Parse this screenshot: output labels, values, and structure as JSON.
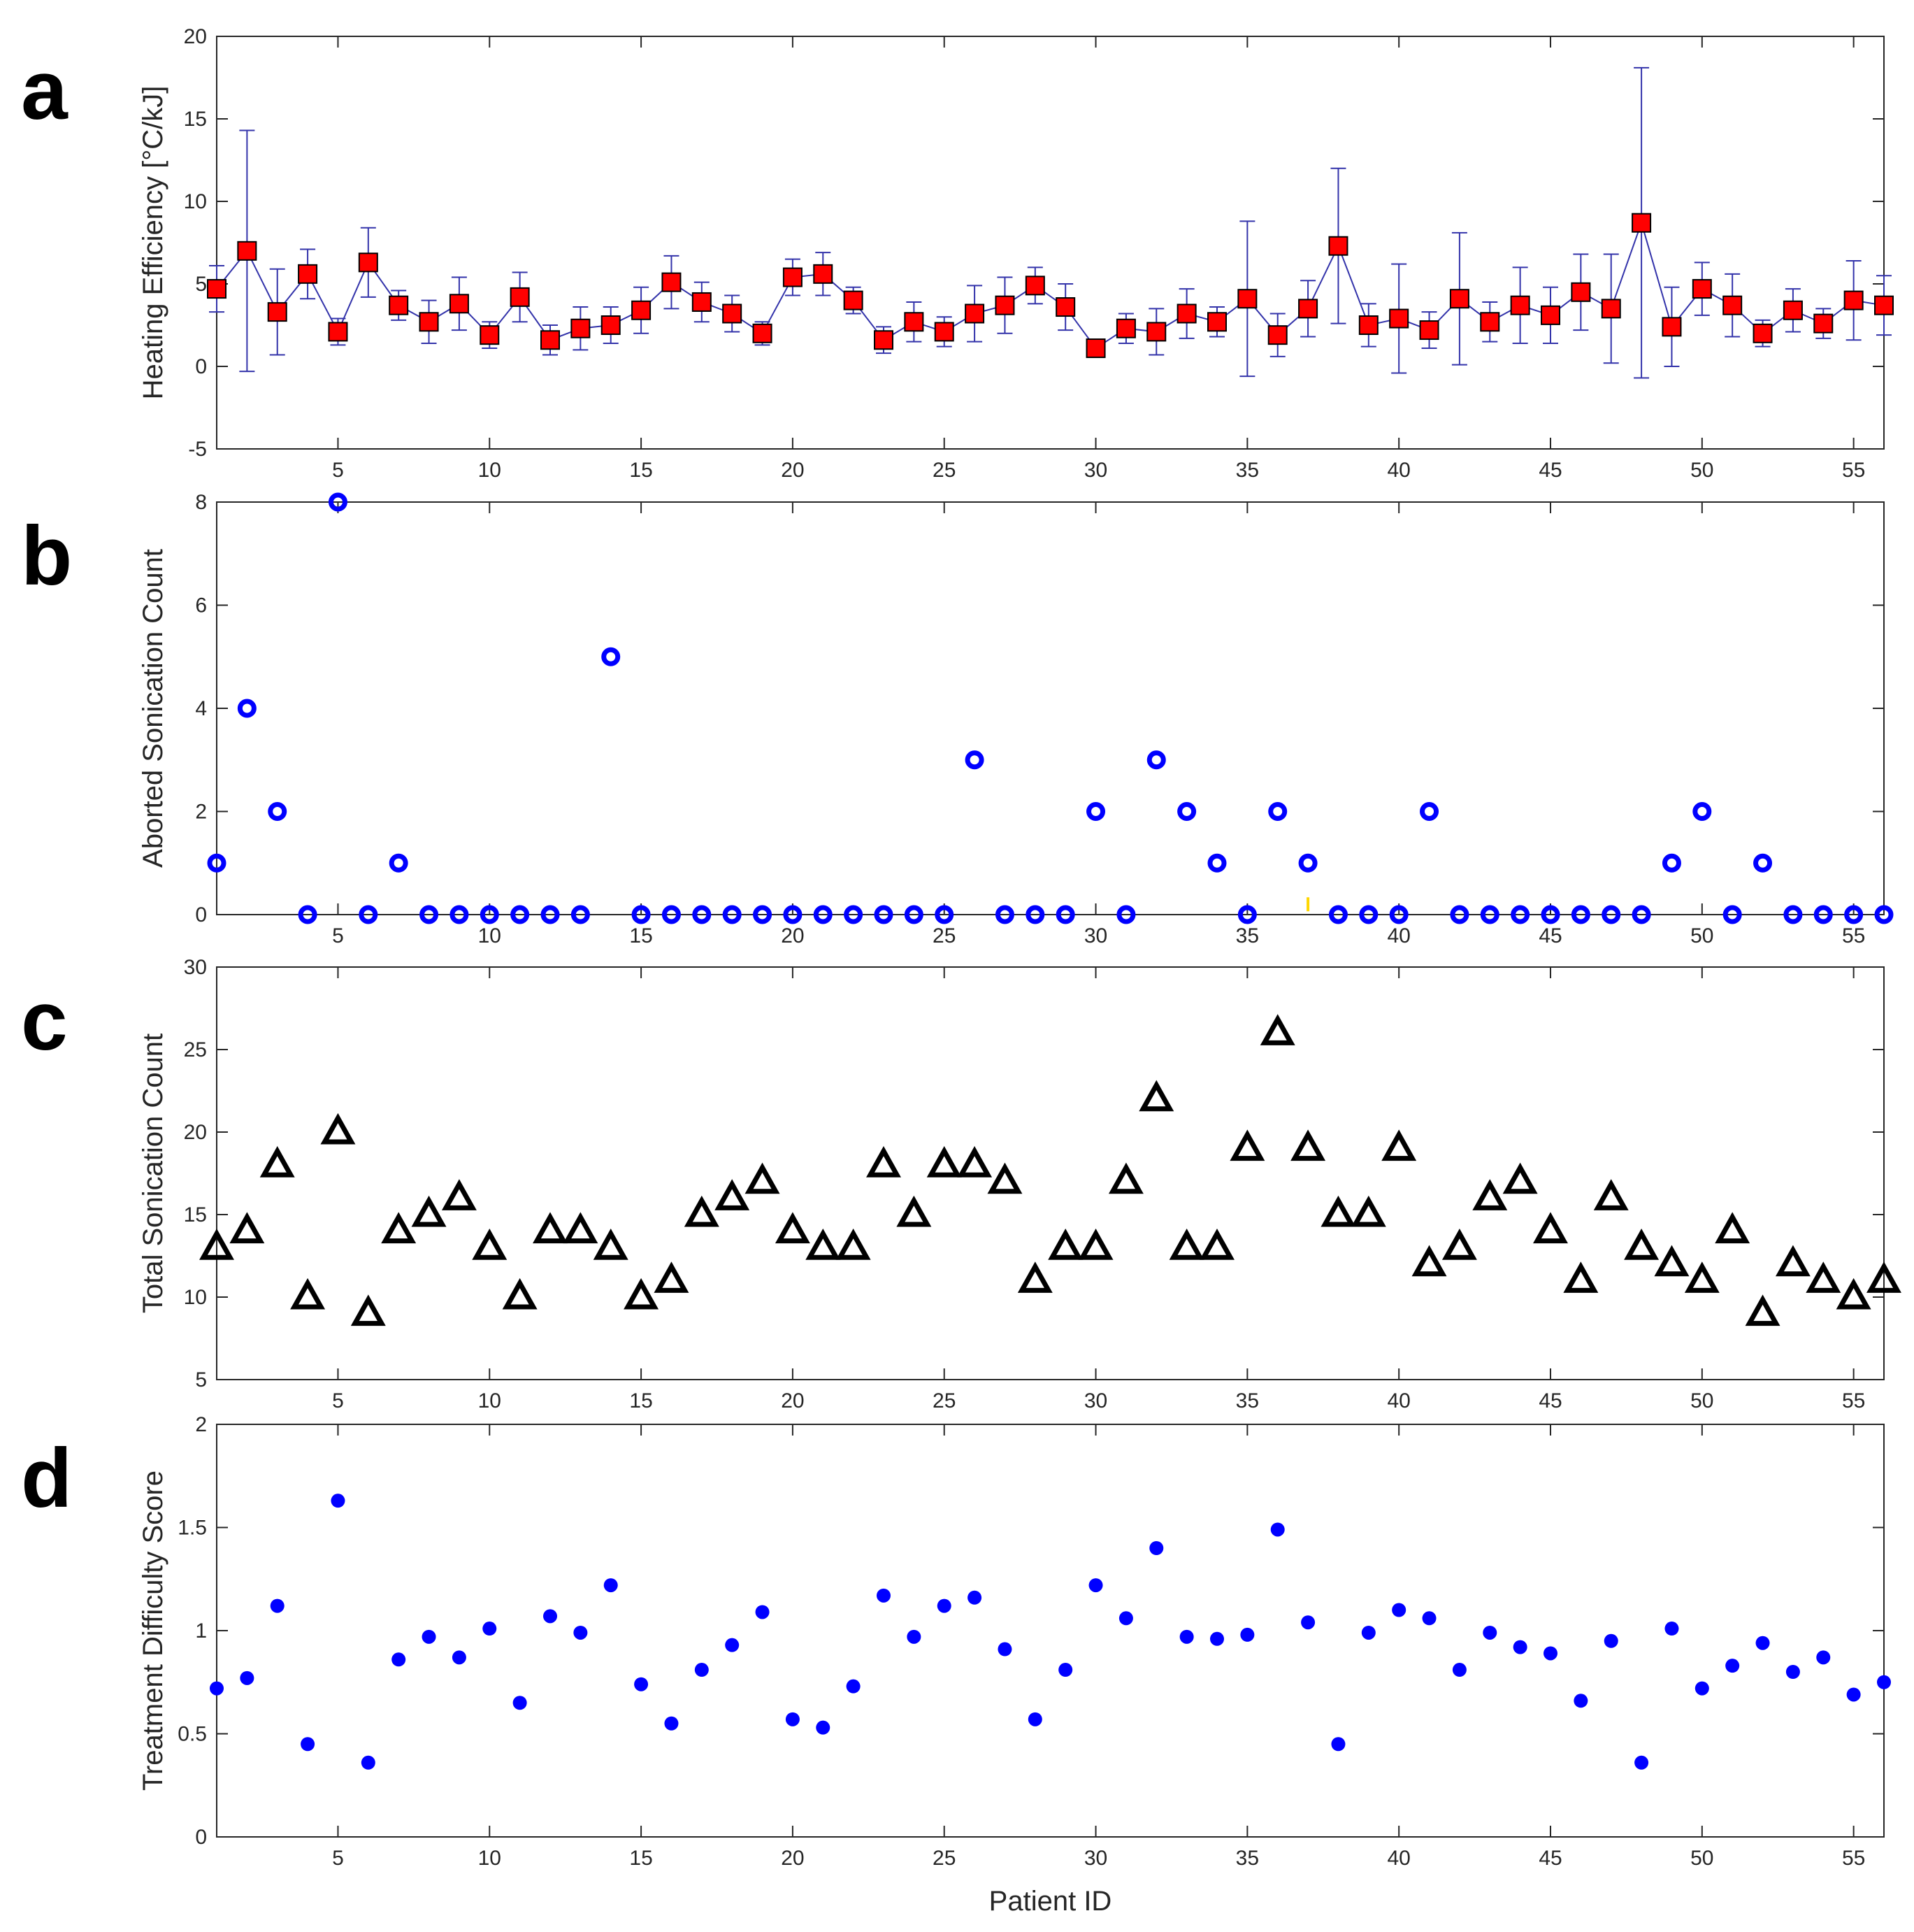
{
  "figure": {
    "xlabel": "Patient ID"
  },
  "colors": {
    "axis": "#262626",
    "marker_red": "#ff0000",
    "errorbar": "#3333aa",
    "blue": "#0000ff",
    "black": "#000000",
    "annotation": "#ffd700"
  },
  "chart_data": [
    {
      "id": "a",
      "panel_label": "a",
      "type": "line",
      "ylabel": "Heating Efficiency [°C/kJ]",
      "xlim": [
        1,
        56
      ],
      "ylim": [
        -5,
        20
      ],
      "xticks": [
        5,
        10,
        15,
        20,
        25,
        30,
        35,
        40,
        45,
        50,
        55
      ],
      "yticks": [
        -5,
        0,
        5,
        10,
        15,
        20
      ],
      "x": [
        1,
        2,
        3,
        4,
        5,
        6,
        7,
        8,
        9,
        10,
        11,
        12,
        13,
        14,
        15,
        16,
        17,
        18,
        19,
        20,
        21,
        22,
        23,
        24,
        25,
        26,
        27,
        28,
        29,
        30,
        31,
        32,
        33,
        34,
        35,
        36,
        37,
        38,
        39,
        40,
        41,
        42,
        43,
        44,
        45,
        46,
        47,
        48,
        49,
        50,
        51,
        52,
        53,
        54,
        55,
        56
      ],
      "y": [
        4.7,
        7.0,
        3.3,
        5.6,
        2.1,
        6.3,
        3.7,
        2.7,
        3.8,
        1.9,
        4.2,
        1.6,
        2.3,
        2.5,
        3.4,
        5.1,
        3.9,
        3.2,
        2.0,
        5.4,
        5.6,
        4.0,
        1.6,
        2.7,
        2.1,
        3.2,
        3.7,
        4.9,
        3.6,
        1.1,
        2.3,
        2.1,
        3.2,
        2.7,
        4.1,
        1.9,
        3.5,
        7.3,
        2.5,
        2.9,
        2.2,
        4.1,
        2.7,
        3.7,
        3.1,
        4.5,
        3.5,
        8.7,
        2.4,
        4.7,
        3.7,
        2.0,
        3.4,
        2.6,
        4.0,
        3.7
      ],
      "err": [
        1.4,
        7.3,
        2.6,
        1.5,
        0.8,
        2.1,
        0.9,
        1.3,
        1.6,
        0.8,
        1.5,
        0.9,
        1.3,
        1.1,
        1.4,
        1.6,
        1.2,
        1.1,
        0.7,
        1.1,
        1.3,
        0.8,
        0.8,
        1.2,
        0.9,
        1.7,
        1.7,
        1.1,
        1.4,
        0.5,
        0.9,
        1.4,
        1.5,
        0.9,
        4.7,
        1.3,
        1.7,
        4.7,
        1.3,
        3.3,
        1.1,
        4.0,
        1.2,
        2.3,
        1.7,
        2.3,
        3.3,
        9.4,
        2.4,
        1.6,
        1.9,
        0.8,
        1.3,
        0.9,
        2.4,
        1.8
      ]
    },
    {
      "id": "b",
      "panel_label": "b",
      "type": "scatter",
      "ylabel": "Aborted Sonication Count",
      "xlim": [
        1,
        56
      ],
      "ylim": [
        0,
        8
      ],
      "xticks": [
        5,
        10,
        15,
        20,
        25,
        30,
        35,
        40,
        45,
        50,
        55
      ],
      "yticks": [
        0,
        2,
        4,
        6,
        8
      ],
      "x": [
        1,
        2,
        3,
        4,
        5,
        6,
        7,
        8,
        9,
        10,
        11,
        12,
        13,
        14,
        15,
        16,
        17,
        18,
        19,
        20,
        21,
        22,
        23,
        24,
        25,
        26,
        27,
        28,
        29,
        30,
        31,
        32,
        33,
        34,
        35,
        36,
        37,
        38,
        39,
        40,
        41,
        42,
        43,
        44,
        45,
        46,
        47,
        48,
        49,
        50,
        51,
        52,
        53,
        54,
        55,
        56
      ],
      "y": [
        1,
        4,
        2,
        0,
        8,
        0,
        1,
        0,
        0,
        0,
        0,
        0,
        0,
        5,
        0,
        0,
        0,
        0,
        0,
        0,
        0,
        0,
        0,
        0,
        0,
        3,
        0,
        0,
        0,
        2,
        0,
        3,
        2,
        1,
        0,
        2,
        1,
        0,
        0,
        0,
        2,
        0,
        0,
        0,
        0,
        0,
        0,
        0,
        1,
        2,
        0,
        1,
        0,
        0,
        0,
        0
      ],
      "annotation": {
        "x": 37,
        "y": 0.2
      }
    },
    {
      "id": "c",
      "panel_label": "c",
      "type": "scatter",
      "ylabel": "Total Sonication Count",
      "xlim": [
        1,
        56
      ],
      "ylim": [
        5,
        30
      ],
      "xticks": [
        5,
        10,
        15,
        20,
        25,
        30,
        35,
        40,
        45,
        50,
        55
      ],
      "yticks": [
        5,
        10,
        15,
        20,
        25,
        30
      ],
      "x": [
        1,
        2,
        3,
        4,
        5,
        6,
        7,
        8,
        9,
        10,
        11,
        12,
        13,
        14,
        15,
        16,
        17,
        18,
        19,
        20,
        21,
        22,
        23,
        24,
        25,
        26,
        27,
        28,
        29,
        30,
        31,
        32,
        33,
        34,
        35,
        36,
        37,
        38,
        39,
        40,
        41,
        42,
        43,
        44,
        45,
        46,
        47,
        48,
        49,
        50,
        51,
        52,
        53,
        54,
        55,
        56
      ],
      "y": [
        13,
        14,
        18,
        10,
        20,
        9,
        14,
        15,
        16,
        13,
        10,
        14,
        14,
        13,
        10,
        11,
        15,
        16,
        17,
        14,
        13,
        13,
        18,
        15,
        18,
        18,
        17,
        11,
        13,
        13,
        17,
        22,
        13,
        13,
        19,
        26,
        19,
        15,
        15,
        19,
        12,
        13,
        16,
        17,
        14,
        11,
        16,
        13,
        12,
        11,
        14,
        9,
        12,
        11,
        10,
        11
      ]
    },
    {
      "id": "d",
      "panel_label": "d",
      "type": "scatter",
      "ylabel": "Treatment Difficulty Score",
      "xlabel": "Patient ID",
      "xlim": [
        1,
        56
      ],
      "ylim": [
        0,
        2
      ],
      "xticks": [
        5,
        10,
        15,
        20,
        25,
        30,
        35,
        40,
        45,
        50,
        55
      ],
      "yticks": [
        0,
        0.5,
        1,
        1.5,
        2
      ],
      "x": [
        1,
        2,
        3,
        4,
        5,
        6,
        7,
        8,
        9,
        10,
        11,
        12,
        13,
        14,
        15,
        16,
        17,
        18,
        19,
        20,
        21,
        22,
        23,
        24,
        25,
        26,
        27,
        28,
        29,
        30,
        31,
        32,
        33,
        34,
        35,
        36,
        37,
        38,
        39,
        40,
        41,
        42,
        43,
        44,
        45,
        46,
        47,
        48,
        49,
        50,
        51,
        52,
        53,
        54,
        55,
        56
      ],
      "y": [
        0.72,
        0.77,
        1.12,
        0.45,
        1.63,
        0.36,
        0.86,
        0.97,
        0.87,
        1.01,
        0.65,
        1.07,
        0.99,
        1.22,
        0.74,
        0.55,
        0.81,
        0.93,
        1.09,
        0.57,
        0.53,
        0.73,
        1.17,
        0.97,
        1.12,
        1.16,
        0.91,
        0.57,
        0.81,
        1.22,
        1.06,
        1.4,
        0.97,
        0.96,
        0.98,
        1.49,
        1.04,
        0.45,
        0.99,
        1.1,
        1.06,
        0.81,
        0.99,
        0.92,
        0.89,
        0.66,
        0.95,
        0.36,
        1.01,
        0.72,
        0.83,
        0.94,
        0.8,
        0.87,
        0.69,
        0.75
      ]
    }
  ]
}
